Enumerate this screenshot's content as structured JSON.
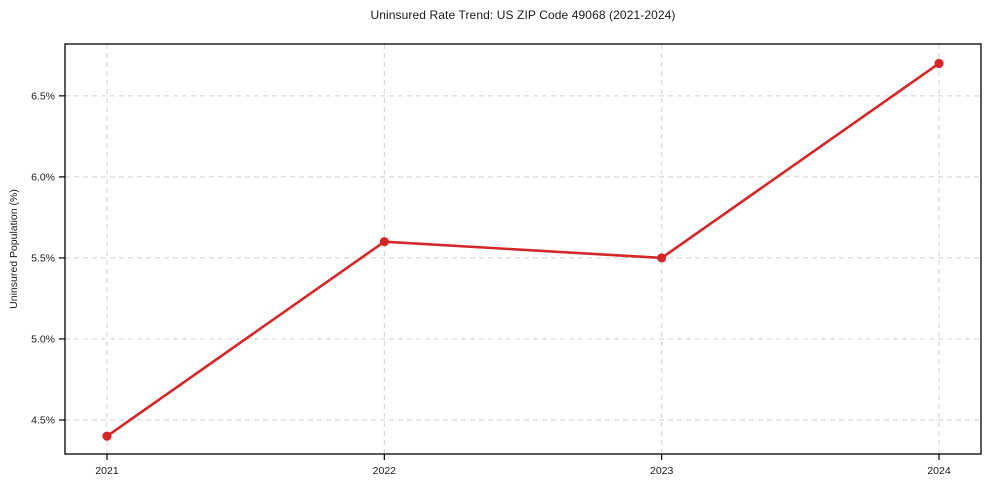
{
  "title": "Uninsured Rate Trend: US ZIP Code 49068 (2021-2024)",
  "chart_data": {
    "type": "line",
    "title": "Uninsured Rate Trend: US ZIP Code 49068 (2021-2024)",
    "xlabel": "",
    "ylabel": "Uninsured Population (%)",
    "categories": [
      "2021",
      "2022",
      "2023",
      "2024"
    ],
    "series": [
      {
        "name": "Uninsured rate",
        "values": [
          4.4,
          5.6,
          5.5,
          6.7
        ]
      }
    ],
    "ytick_values": [
      4.5,
      5.0,
      5.5,
      6.0,
      6.5
    ],
    "ytick_labels": [
      "4.5%",
      "5.0%",
      "5.5%",
      "6.0%",
      "6.5%"
    ],
    "ylim": [
      4.29,
      6.82
    ],
    "grid": true,
    "grid_style": "dashed",
    "legend": "none",
    "colors": {
      "line": "#d62728",
      "marker": "#d62728",
      "grid": "#d0d0d0",
      "axis_border": "#000000",
      "text": "#1a1a1a",
      "background": "#ffffff"
    }
  }
}
